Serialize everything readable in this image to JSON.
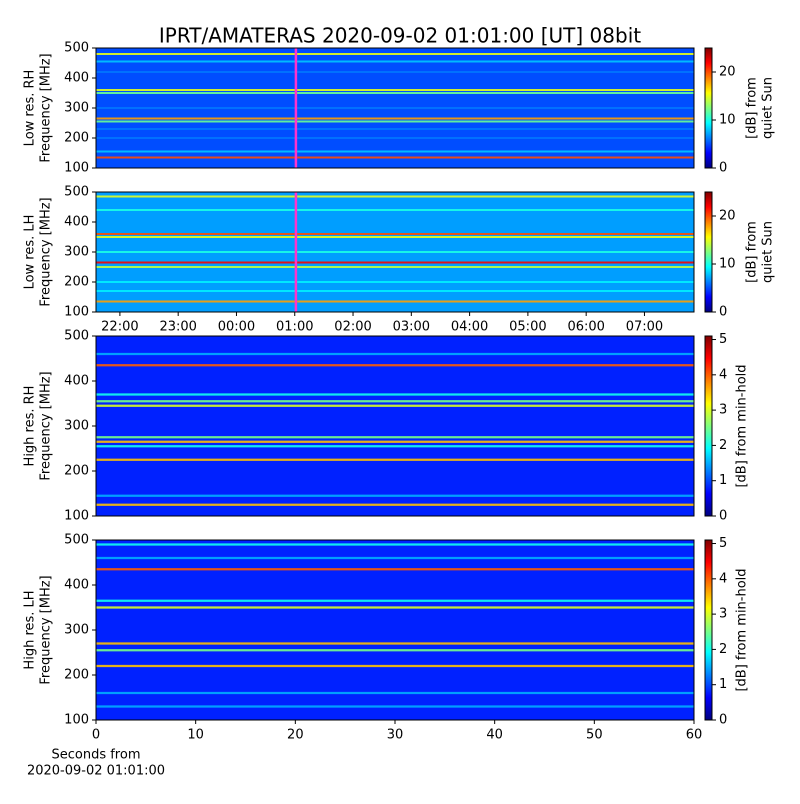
{
  "chart_data": [
    {
      "type": "heatmap",
      "title": "IPRT/AMATERAS 2020-09-02 01:01:00 [UT]   08bit",
      "ylabel": [
        "Low res. RH",
        "Frequency [MHz]"
      ],
      "ylim": [
        100,
        500
      ],
      "yticks": [
        100,
        200,
        300,
        400,
        500
      ],
      "xlim": [
        21.59,
        31.85
      ],
      "marker_x": 25.02,
      "marker_color": "#ff33cc",
      "colorbar_label": [
        "[dB] from",
        "quiet Sun"
      ],
      "colorbar_lim": [
        0,
        25
      ],
      "colorbar_ticks": [
        0,
        10,
        20
      ],
      "background": 5,
      "bands": {
        "freq": [
          480,
          455,
          420,
          360,
          350,
          300,
          265,
          255,
          230,
          200,
          155,
          135
        ],
        "level": [
          15,
          8,
          6,
          15,
          12,
          6,
          18,
          12,
          6,
          6,
          8,
          20
        ]
      }
    },
    {
      "type": "heatmap",
      "ylabel": [
        "Low res. LH",
        "Frequency [MHz]"
      ],
      "ylim": [
        100,
        500
      ],
      "yticks": [
        100,
        200,
        300,
        400,
        500
      ],
      "xlim": [
        21.59,
        31.85
      ],
      "xticks": [
        {
          "value": 22,
          "label": "22:00"
        },
        {
          "value": 23,
          "label": "23:00"
        },
        {
          "value": 24,
          "label": "00:00"
        },
        {
          "value": 25,
          "label": "01:00"
        },
        {
          "value": 26,
          "label": "02:00"
        },
        {
          "value": 27,
          "label": "03:00"
        },
        {
          "value": 28,
          "label": "04:00"
        },
        {
          "value": 29,
          "label": "05:00"
        },
        {
          "value": 30,
          "label": "06:00"
        },
        {
          "value": 31,
          "label": "07:00"
        }
      ],
      "marker_x": 25.02,
      "marker_color": "#ff33cc",
      "colorbar_label": [
        "[dB] from",
        "quiet Sun"
      ],
      "colorbar_lim": [
        0,
        25
      ],
      "colorbar_ticks": [
        0,
        10,
        20
      ],
      "background": 7,
      "bands": {
        "freq": [
          485,
          440,
          360,
          350,
          300,
          265,
          250,
          200,
          170,
          135
        ],
        "level": [
          15,
          10,
          20,
          15,
          10,
          22,
          14,
          9,
          9,
          18
        ]
      }
    },
    {
      "type": "heatmap",
      "ylabel": [
        "High res. RH",
        "Frequency [MHz]"
      ],
      "ylim": [
        100,
        500
      ],
      "yticks": [
        100,
        200,
        300,
        400,
        500
      ],
      "xlim": [
        0,
        60
      ],
      "colorbar_label": [
        "[dB] from min-hold"
      ],
      "colorbar_lim": [
        0,
        5.1
      ],
      "colorbar_ticks": [
        0,
        1,
        2,
        3,
        4,
        5
      ],
      "background": 0.8,
      "bands": {
        "freq": [
          460,
          435,
          370,
          355,
          345,
          275,
          265,
          255,
          225,
          145,
          125
        ],
        "level": [
          1.5,
          4,
          2,
          2.5,
          3,
          2.5,
          3.5,
          2,
          3.5,
          1.5,
          3.5
        ]
      }
    },
    {
      "type": "heatmap",
      "ylabel": [
        "High res. LH",
        "Frequency [MHz]"
      ],
      "ylim": [
        100,
        500
      ],
      "yticks": [
        100,
        200,
        300,
        400,
        500
      ],
      "xlim": [
        0,
        60
      ],
      "xticks": [
        0,
        10,
        20,
        30,
        40,
        50,
        60
      ],
      "xlabel": [
        "Seconds from",
        "2020-09-02 01:01:00"
      ],
      "colorbar_label": [
        "[dB] from min-hold"
      ],
      "colorbar_lim": [
        0,
        5.1
      ],
      "colorbar_ticks": [
        0,
        1,
        2,
        3,
        4,
        5
      ],
      "background": 0.8,
      "bands": {
        "freq": [
          490,
          460,
          435,
          365,
          350,
          270,
          255,
          220,
          160,
          130
        ],
        "level": [
          2,
          1.5,
          4,
          2,
          3,
          3.5,
          2.5,
          3.5,
          1.5,
          1.5
        ]
      }
    }
  ]
}
